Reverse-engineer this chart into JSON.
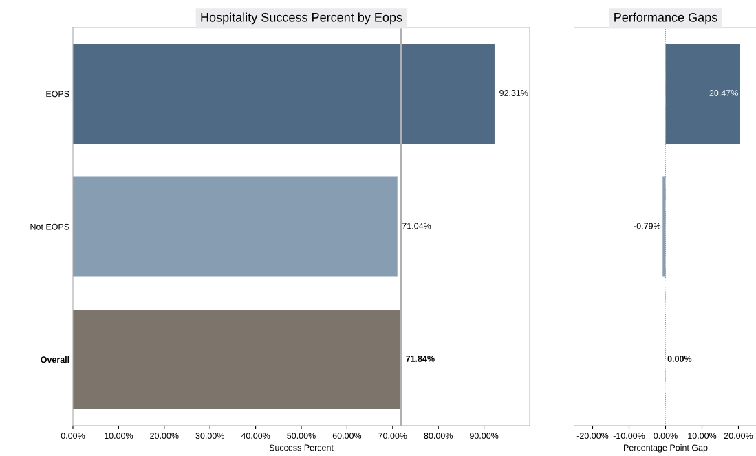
{
  "chart_data": [
    {
      "type": "bar",
      "orientation": "horizontal",
      "title": "Hospitality Success Percent by Eops",
      "xlabel": "Success Percent",
      "categories": [
        "EOPS",
        "Not EOPS",
        "Overall"
      ],
      "values": [
        92.31,
        71.04,
        71.84
      ],
      "colors": [
        "#4e6a84",
        "#879db1",
        "#7d746b"
      ],
      "value_labels": [
        "92.31%",
        "71.04%",
        "71.84%"
      ],
      "xlim": [
        0,
        100
      ],
      "xticks": [
        {
          "value": 0,
          "label": "0.00%"
        },
        {
          "value": 10,
          "label": "10.00%"
        },
        {
          "value": 20,
          "label": "20.00%"
        },
        {
          "value": 30,
          "label": "30.00%"
        },
        {
          "value": 40,
          "label": "40.00%"
        },
        {
          "value": 50,
          "label": "50.00%"
        },
        {
          "value": 60,
          "label": "60.00%"
        },
        {
          "value": 70,
          "label": "70.00%"
        },
        {
          "value": 80,
          "label": "80.00%"
        },
        {
          "value": 90,
          "label": "90.00%"
        }
      ],
      "ref_lines": [
        {
          "axis": "x",
          "value": 71.84,
          "color": "#b0b0b0",
          "line_style": "solid"
        }
      ],
      "grid": false,
      "legend": false
    },
    {
      "type": "bar",
      "orientation": "horizontal",
      "title": "Performance Gaps",
      "xlabel": "Percentage Point Gap",
      "categories": [
        null,
        null,
        null
      ],
      "values": [
        20.47,
        -0.79,
        0.0
      ],
      "colors": [
        "#4e6a84",
        "#879db1",
        "#5a524b"
      ],
      "value_labels": [
        "20.47%",
        "-0.79%",
        "0.00%"
      ],
      "xlim": [
        -25,
        25
      ],
      "xticks": [
        {
          "value": -20,
          "label": "-20.00%"
        },
        {
          "value": -10,
          "label": "-10.00%"
        },
        {
          "value": 0,
          "label": "0.00%"
        },
        {
          "value": 10,
          "label": "10.00%"
        },
        {
          "value": 20,
          "label": "20.00%"
        }
      ],
      "ref_lines": [
        {
          "axis": "x",
          "value": 0,
          "color": "#999999",
          "line_style": "dotted"
        }
      ],
      "tick_labels": "x",
      "grid": false,
      "legend": false
    }
  ]
}
